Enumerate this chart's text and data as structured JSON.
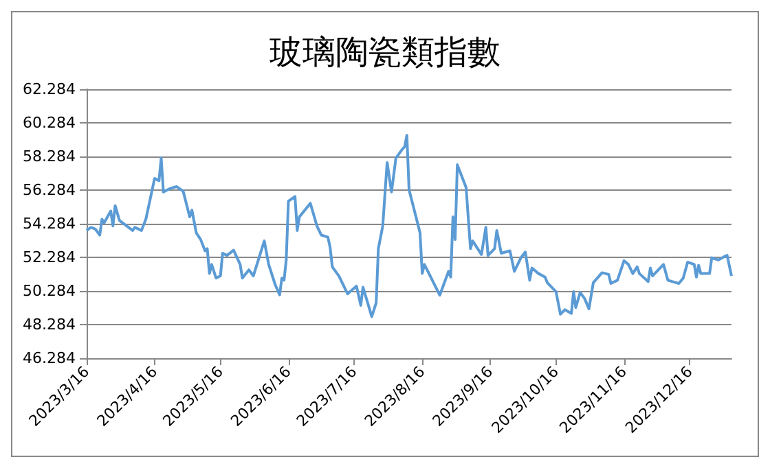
{
  "chart_data": {
    "type": "line",
    "title": "玻璃陶瓷類指數",
    "x": [
      "2023-03-16",
      "2023-03-18",
      "2023-03-20",
      "2023-03-22",
      "2023-03-23",
      "2023-03-24",
      "2023-03-27",
      "2023-03-28",
      "2023-03-29",
      "2023-03-31",
      "2023-04-06",
      "2023-04-07",
      "2023-04-10",
      "2023-04-12",
      "2023-04-14",
      "2023-04-16",
      "2023-04-18",
      "2023-04-19",
      "2023-04-20",
      "2023-04-23",
      "2023-04-26",
      "2023-04-29",
      "2023-05-02",
      "2023-05-03",
      "2023-05-05",
      "2023-05-07",
      "2023-05-09",
      "2023-05-10",
      "2023-05-11",
      "2023-05-12",
      "2023-05-14",
      "2023-05-16",
      "2023-05-17",
      "2023-05-19",
      "2023-05-22",
      "2023-05-25",
      "2023-05-26",
      "2023-05-29",
      "2023-05-31",
      "2023-06-05",
      "2023-06-07",
      "2023-06-10",
      "2023-06-12",
      "2023-06-13",
      "2023-06-14",
      "2023-06-15",
      "2023-06-16",
      "2023-06-19",
      "2023-06-20",
      "2023-06-21",
      "2023-06-26",
      "2023-06-29",
      "2023-07-01",
      "2023-07-04",
      "2023-07-05",
      "2023-07-06",
      "2023-07-09",
      "2023-07-13",
      "2023-07-17",
      "2023-07-19",
      "2023-07-20",
      "2023-07-24",
      "2023-07-26",
      "2023-07-27",
      "2023-07-29",
      "2023-07-31",
      "2023-08-02",
      "2023-08-04",
      "2023-08-07",
      "2023-08-08",
      "2023-08-09",
      "2023-08-10",
      "2023-08-15",
      "2023-08-16",
      "2023-08-17",
      "2023-08-24",
      "2023-08-28",
      "2023-08-29",
      "2023-08-30",
      "2023-08-31",
      "2023-09-01",
      "2023-09-05",
      "2023-09-07",
      "2023-09-08",
      "2023-09-12",
      "2023-09-14",
      "2023-09-15",
      "2023-09-18",
      "2023-09-19",
      "2023-09-21",
      "2023-09-25",
      "2023-09-27",
      "2023-09-30",
      "2023-10-02",
      "2023-10-04",
      "2023-10-05",
      "2023-10-08",
      "2023-10-11",
      "2023-10-12",
      "2023-10-16",
      "2023-10-18",
      "2023-10-20",
      "2023-10-23",
      "2023-10-24",
      "2023-10-25",
      "2023-10-27",
      "2023-10-29",
      "2023-10-31",
      "2023-11-02",
      "2023-11-06",
      "2023-11-09",
      "2023-11-10",
      "2023-11-13",
      "2023-11-16",
      "2023-11-18",
      "2023-11-20",
      "2023-11-22",
      "2023-11-23",
      "2023-11-27",
      "2023-11-28",
      "2023-11-29",
      "2023-12-04",
      "2023-12-06",
      "2023-12-11",
      "2023-12-13",
      "2023-12-15",
      "2023-12-18",
      "2023-12-19",
      "2023-12-20",
      "2023-12-21",
      "2023-12-25",
      "2023-12-26",
      "2023-12-29",
      "2024-01-01",
      "2024-01-02",
      "2024-01-04"
    ],
    "series": [
      {
        "color": "#5b9bd5",
        "values": [
          53.88,
          54.07,
          53.96,
          53.61,
          54.55,
          54.34,
          55.04,
          54.15,
          55.36,
          54.47,
          53.88,
          54.07,
          53.88,
          54.55,
          55.76,
          56.98,
          56.84,
          58.19,
          56.17,
          56.38,
          56.49,
          56.22,
          54.69,
          55.09,
          53.74,
          53.34,
          52.67,
          52.8,
          51.32,
          51.86,
          51.05,
          51.18,
          52.53,
          52.4,
          52.71,
          51.86,
          51.05,
          51.54,
          51.18,
          53.26,
          51.86,
          50.65,
          50.05,
          51.05,
          50.92,
          52.13,
          55.63,
          55.9,
          53.88,
          54.69,
          55.5,
          54.15,
          53.61,
          53.48,
          52.88,
          51.72,
          51.18,
          50.11,
          50.57,
          49.43,
          50.51,
          48.76,
          49.57,
          52.8,
          54.15,
          57.92,
          56.17,
          58.19,
          58.73,
          58.86,
          59.54,
          56.3,
          53.74,
          51.32,
          51.86,
          50.03,
          51.45,
          51.11,
          54.69,
          53.34,
          57.79,
          56.44,
          52.8,
          53.26,
          52.45,
          54.07,
          52.4,
          52.8,
          53.88,
          52.53,
          52.67,
          51.45,
          52.26,
          52.6,
          50.92,
          51.65,
          51.32,
          51.11,
          50.78,
          50.24,
          48.9,
          49.17,
          48.95,
          50.24,
          49.3,
          50.19,
          49.84,
          49.22,
          50.78,
          51.37,
          51.27,
          50.73,
          50.92,
          52.08,
          51.86,
          51.32,
          51.72,
          51.32,
          50.84,
          51.65,
          51.18,
          51.86,
          50.92,
          50.73,
          51.05,
          52.0,
          51.86,
          51.11,
          51.81,
          51.32,
          51.32,
          52.26,
          52.13,
          52.35,
          52.4,
          51.18
        ]
      }
    ],
    "xlim": [
      "2023-03-16",
      "2024-01-04"
    ],
    "xticks": [
      {
        "value": "2023-03-16",
        "label": "2023/3/16"
      },
      {
        "value": "2023-04-16",
        "label": "2023/4/16"
      },
      {
        "value": "2023-05-16",
        "label": "2023/5/16"
      },
      {
        "value": "2023-06-16",
        "label": "2023/6/16"
      },
      {
        "value": "2023-07-16",
        "label": "2023/7/16"
      },
      {
        "value": "2023-08-16",
        "label": "2023/8/16"
      },
      {
        "value": "2023-09-16",
        "label": "2023/9/16"
      },
      {
        "value": "2023-10-16",
        "label": "2023/10/16"
      },
      {
        "value": "2023-11-16",
        "label": "2023/11/16"
      },
      {
        "value": "2023-12-16",
        "label": "2023/12/16"
      }
    ],
    "ylim": [
      46.284,
      62.284
    ],
    "yticks": [
      46.284,
      48.284,
      50.284,
      52.284,
      54.284,
      56.284,
      58.284,
      60.284,
      62.284
    ],
    "grid": "y",
    "marker": "none",
    "line_style": "solid"
  }
}
